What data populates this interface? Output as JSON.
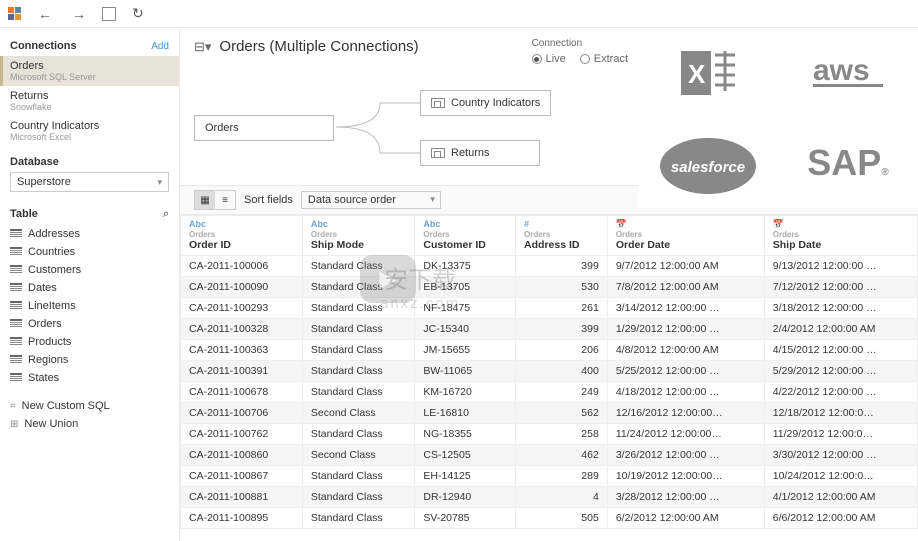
{
  "title": "Orders (Multiple Connections)",
  "connection_mode_label": "Connection",
  "mode_live": "Live",
  "mode_extract": "Extract",
  "sidebar": {
    "connections_label": "Connections",
    "add_label": "Add",
    "connections": [
      {
        "name": "Orders",
        "source": "Microsoft SQL Server",
        "active": true
      },
      {
        "name": "Returns",
        "source": "Snowflake",
        "active": false
      },
      {
        "name": "Country Indicators",
        "source": "Microsoft Excel",
        "active": false
      }
    ],
    "database_label": "Database",
    "database_value": "Superstore",
    "table_label": "Table",
    "tables": [
      "Addresses",
      "Countries",
      "Customers",
      "Dates",
      "LineItems",
      "Orders",
      "Products",
      "Regions",
      "States"
    ],
    "custom_sql": "New Custom SQL",
    "new_union": "New Union"
  },
  "canvas": {
    "root": "Orders",
    "child1": "Country Indicators",
    "child2": "Returns"
  },
  "grid_toolbar": {
    "sort_label": "Sort fields",
    "sort_value": "Data source order"
  },
  "columns": [
    {
      "type": "Abc",
      "src": "Orders",
      "name": "Order ID"
    },
    {
      "type": "Abc",
      "src": "Orders",
      "name": "Ship Mode"
    },
    {
      "type": "Abc",
      "src": "Orders",
      "name": "Customer ID"
    },
    {
      "type": "#",
      "src": "Orders",
      "name": "Address ID"
    },
    {
      "type": "cal",
      "src": "Orders",
      "name": "Order Date"
    },
    {
      "type": "cal",
      "src": "Orders",
      "name": "Ship Date"
    }
  ],
  "rows": [
    [
      "CA-2011-100006",
      "Standard Class",
      "DK-13375",
      "399",
      "9/7/2012 12:00:00 AM",
      "9/13/2012 12:00:00 …"
    ],
    [
      "CA-2011-100090",
      "Standard Class",
      "EB-13705",
      "530",
      "7/8/2012 12:00:00 AM",
      "7/12/2012 12:00:00 …"
    ],
    [
      "CA-2011-100293",
      "Standard Class",
      "NF-18475",
      "261",
      "3/14/2012 12:00:00 …",
      "3/18/2012 12:00:00 …"
    ],
    [
      "CA-2011-100328",
      "Standard Class",
      "JC-15340",
      "399",
      "1/29/2012 12:00:00 …",
      "2/4/2012 12:00:00 AM"
    ],
    [
      "CA-2011-100363",
      "Standard Class",
      "JM-15655",
      "206",
      "4/8/2012 12:00:00 AM",
      "4/15/2012 12:00:00 …"
    ],
    [
      "CA-2011-100391",
      "Standard Class",
      "BW-11065",
      "400",
      "5/25/2012 12:00:00 …",
      "5/29/2012 12:00:00 …"
    ],
    [
      "CA-2011-100678",
      "Standard Class",
      "KM-16720",
      "249",
      "4/18/2012 12:00:00 …",
      "4/22/2012 12:00:00 …"
    ],
    [
      "CA-2011-100706",
      "Second Class",
      "LE-16810",
      "562",
      "12/16/2012 12:00:00…",
      "12/18/2012 12:00:0…"
    ],
    [
      "CA-2011-100762",
      "Standard Class",
      "NG-18355",
      "258",
      "11/24/2012 12:00:00…",
      "11/29/2012 12:00:0…"
    ],
    [
      "CA-2011-100860",
      "Second Class",
      "CS-12505",
      "462",
      "3/26/2012 12:00:00 …",
      "3/30/2012 12:00:00 …"
    ],
    [
      "CA-2011-100867",
      "Standard Class",
      "EH-14125",
      "289",
      "10/19/2012 12:00:00…",
      "10/24/2012 12:00:0…"
    ],
    [
      "CA-2011-100881",
      "Standard Class",
      "DR-12940",
      "4",
      "3/28/2012 12:00:00 …",
      "4/1/2012 12:00:00 AM"
    ],
    [
      "CA-2011-100895",
      "Standard Class",
      "SV-20785",
      "505",
      "6/2/2012 12:00:00 AM",
      "6/6/2012 12:00:00 AM"
    ]
  ],
  "brands": [
    "Excel",
    "aws",
    "salesforce",
    "SAP"
  ],
  "watermark": {
    "cn": "安下载",
    "en": "anxz.com"
  }
}
